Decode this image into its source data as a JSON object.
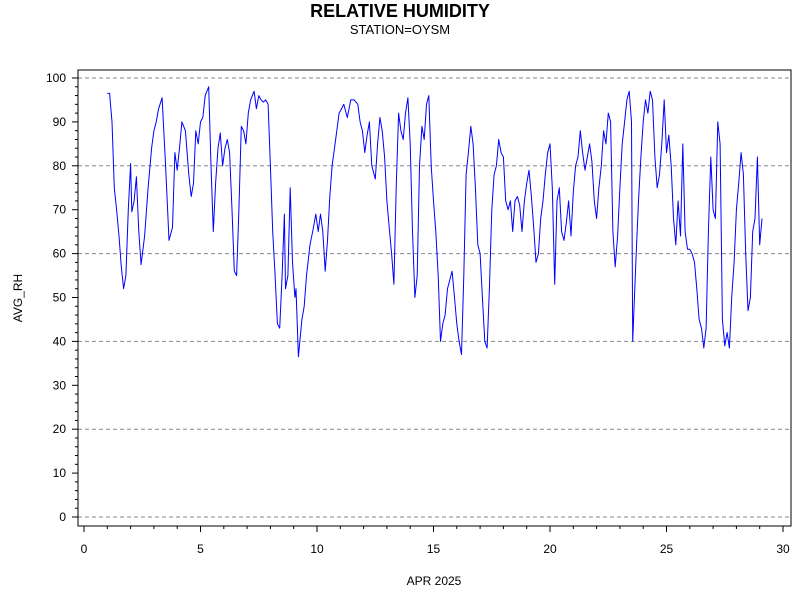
{
  "chart_data": {
    "type": "line",
    "title": "RELATIVE HUMIDITY",
    "subtitle": "STATION=OYSM",
    "xlabel": "APR 2025",
    "ylabel": "AVG_RH",
    "xlim": [
      0,
      30
    ],
    "ylim": [
      0,
      100
    ],
    "x_ticks": [
      0,
      5,
      10,
      15,
      20,
      25,
      30
    ],
    "y_ticks": [
      0,
      10,
      20,
      30,
      40,
      50,
      60,
      70,
      80,
      90,
      100
    ],
    "dashed_gridlines_y": [
      0,
      20,
      40,
      60,
      80,
      100
    ],
    "line_color": "#0000ff",
    "series": [
      {
        "values": [
          [
            1.0,
            96.5
          ],
          [
            1.1,
            96.5
          ],
          [
            1.2,
            90
          ],
          [
            1.3,
            75
          ],
          [
            1.4,
            70
          ],
          [
            1.5,
            64
          ],
          [
            1.6,
            57
          ],
          [
            1.7,
            52
          ],
          [
            1.8,
            55
          ],
          [
            1.9,
            70
          ],
          [
            2.0,
            80.5
          ],
          [
            2.05,
            69.5
          ],
          [
            2.15,
            72
          ],
          [
            2.25,
            77.5
          ],
          [
            2.35,
            65
          ],
          [
            2.45,
            57.5
          ],
          [
            2.6,
            64
          ],
          [
            2.75,
            75
          ],
          [
            2.9,
            84
          ],
          [
            3.0,
            88
          ],
          [
            3.1,
            90
          ],
          [
            3.2,
            93
          ],
          [
            3.35,
            95.5
          ],
          [
            3.5,
            80
          ],
          [
            3.65,
            63
          ],
          [
            3.8,
            66
          ],
          [
            3.9,
            83
          ],
          [
            4.0,
            79
          ],
          [
            4.1,
            84
          ],
          [
            4.2,
            90
          ],
          [
            4.35,
            88
          ],
          [
            4.5,
            78
          ],
          [
            4.6,
            73
          ],
          [
            4.7,
            76
          ],
          [
            4.8,
            88
          ],
          [
            4.9,
            85
          ],
          [
            5.0,
            90
          ],
          [
            5.1,
            91
          ],
          [
            5.2,
            96
          ],
          [
            5.35,
            98
          ],
          [
            5.45,
            80
          ],
          [
            5.55,
            65
          ],
          [
            5.65,
            76
          ],
          [
            5.75,
            84
          ],
          [
            5.85,
            87.5
          ],
          [
            5.95,
            80
          ],
          [
            6.05,
            84
          ],
          [
            6.15,
            86
          ],
          [
            6.25,
            83
          ],
          [
            6.35,
            70
          ],
          [
            6.45,
            56
          ],
          [
            6.55,
            55
          ],
          [
            6.65,
            70
          ],
          [
            6.75,
            89
          ],
          [
            6.85,
            88
          ],
          [
            6.95,
            85
          ],
          [
            7.05,
            92
          ],
          [
            7.15,
            95
          ],
          [
            7.3,
            97
          ],
          [
            7.4,
            93
          ],
          [
            7.5,
            96
          ],
          [
            7.6,
            95
          ],
          [
            7.7,
            94.5
          ],
          [
            7.8,
            95
          ],
          [
            7.9,
            94
          ],
          [
            8.0,
            80
          ],
          [
            8.1,
            65
          ],
          [
            8.2,
            55
          ],
          [
            8.3,
            44
          ],
          [
            8.4,
            43
          ],
          [
            8.5,
            55
          ],
          [
            8.6,
            69
          ],
          [
            8.65,
            52
          ],
          [
            8.75,
            55
          ],
          [
            8.85,
            75
          ],
          [
            8.95,
            58
          ],
          [
            9.05,
            50
          ],
          [
            9.1,
            52
          ],
          [
            9.2,
            36.5
          ],
          [
            9.35,
            45
          ],
          [
            9.45,
            48
          ],
          [
            9.55,
            55
          ],
          [
            9.7,
            62
          ],
          [
            9.85,
            66
          ],
          [
            9.95,
            69
          ],
          [
            10.05,
            65
          ],
          [
            10.15,
            69
          ],
          [
            10.25,
            65
          ],
          [
            10.35,
            56
          ],
          [
            10.45,
            63
          ],
          [
            10.55,
            73
          ],
          [
            10.65,
            80
          ],
          [
            10.75,
            84
          ],
          [
            10.85,
            88
          ],
          [
            10.95,
            92
          ],
          [
            11.05,
            93
          ],
          [
            11.15,
            94
          ],
          [
            11.3,
            91
          ],
          [
            11.45,
            95
          ],
          [
            11.6,
            95
          ],
          [
            11.75,
            94
          ],
          [
            11.85,
            90
          ],
          [
            11.95,
            88
          ],
          [
            12.05,
            83
          ],
          [
            12.15,
            87
          ],
          [
            12.25,
            90
          ],
          [
            12.35,
            80
          ],
          [
            12.5,
            77
          ],
          [
            12.6,
            85
          ],
          [
            12.7,
            91
          ],
          [
            12.8,
            88
          ],
          [
            12.9,
            82
          ],
          [
            13.0,
            72
          ],
          [
            13.1,
            66
          ],
          [
            13.2,
            60
          ],
          [
            13.3,
            53
          ],
          [
            13.4,
            75
          ],
          [
            13.5,
            92
          ],
          [
            13.6,
            88
          ],
          [
            13.7,
            86
          ],
          [
            13.8,
            92
          ],
          [
            13.9,
            95.5
          ],
          [
            14.0,
            85
          ],
          [
            14.1,
            65
          ],
          [
            14.2,
            50
          ],
          [
            14.3,
            55
          ],
          [
            14.4,
            80
          ],
          [
            14.5,
            89
          ],
          [
            14.6,
            86
          ],
          [
            14.7,
            94
          ],
          [
            14.8,
            96
          ],
          [
            14.9,
            80
          ],
          [
            15.0,
            72
          ],
          [
            15.1,
            65
          ],
          [
            15.2,
            55
          ],
          [
            15.3,
            40
          ],
          [
            15.4,
            44
          ],
          [
            15.5,
            46
          ],
          [
            15.6,
            52
          ],
          [
            15.7,
            54
          ],
          [
            15.8,
            56
          ],
          [
            15.9,
            50
          ],
          [
            16.0,
            44
          ],
          [
            16.1,
            40
          ],
          [
            16.2,
            37
          ],
          [
            16.3,
            55
          ],
          [
            16.4,
            78
          ],
          [
            16.5,
            83
          ],
          [
            16.6,
            89
          ],
          [
            16.7,
            85
          ],
          [
            16.8,
            75
          ],
          [
            16.9,
            62
          ],
          [
            17.0,
            60
          ],
          [
            17.1,
            50
          ],
          [
            17.2,
            40
          ],
          [
            17.3,
            38.5
          ],
          [
            17.4,
            52
          ],
          [
            17.5,
            70
          ],
          [
            17.6,
            78
          ],
          [
            17.7,
            80
          ],
          [
            17.8,
            86
          ],
          [
            17.9,
            83
          ],
          [
            18.0,
            82
          ],
          [
            18.1,
            72
          ],
          [
            18.2,
            70
          ],
          [
            18.3,
            72
          ],
          [
            18.4,
            65
          ],
          [
            18.5,
            72
          ],
          [
            18.6,
            73
          ],
          [
            18.7,
            71
          ],
          [
            18.8,
            65
          ],
          [
            18.9,
            72
          ],
          [
            19.0,
            76
          ],
          [
            19.1,
            79
          ],
          [
            19.2,
            73
          ],
          [
            19.3,
            66
          ],
          [
            19.4,
            58
          ],
          [
            19.5,
            60
          ],
          [
            19.6,
            68
          ],
          [
            19.7,
            72
          ],
          [
            19.8,
            78
          ],
          [
            19.9,
            83
          ],
          [
            20.0,
            85
          ],
          [
            20.1,
            75
          ],
          [
            20.2,
            53
          ],
          [
            20.3,
            72
          ],
          [
            20.4,
            75
          ],
          [
            20.5,
            65
          ],
          [
            20.6,
            63
          ],
          [
            20.7,
            67
          ],
          [
            20.8,
            72
          ],
          [
            20.9,
            64
          ],
          [
            21.0,
            74
          ],
          [
            21.1,
            80
          ],
          [
            21.2,
            82
          ],
          [
            21.3,
            88
          ],
          [
            21.4,
            83
          ],
          [
            21.5,
            79
          ],
          [
            21.6,
            82
          ],
          [
            21.7,
            85
          ],
          [
            21.8,
            81
          ],
          [
            21.9,
            72
          ],
          [
            22.0,
            68
          ],
          [
            22.1,
            75
          ],
          [
            22.2,
            80
          ],
          [
            22.3,
            88
          ],
          [
            22.4,
            85
          ],
          [
            22.5,
            92
          ],
          [
            22.6,
            90
          ],
          [
            22.7,
            65
          ],
          [
            22.8,
            57
          ],
          [
            22.9,
            64
          ],
          [
            23.0,
            75
          ],
          [
            23.1,
            85
          ],
          [
            23.2,
            90
          ],
          [
            23.3,
            95
          ],
          [
            23.4,
            97
          ],
          [
            23.5,
            90
          ],
          [
            23.55,
            40
          ],
          [
            23.7,
            60
          ],
          [
            23.8,
            72
          ],
          [
            23.9,
            82
          ],
          [
            24.0,
            90
          ],
          [
            24.1,
            95
          ],
          [
            24.2,
            92
          ],
          [
            24.3,
            97
          ],
          [
            24.4,
            95
          ],
          [
            24.5,
            82
          ],
          [
            24.6,
            75
          ],
          [
            24.7,
            78
          ],
          [
            24.8,
            85
          ],
          [
            24.9,
            95
          ],
          [
            25.0,
            83
          ],
          [
            25.1,
            87
          ],
          [
            25.2,
            80
          ],
          [
            25.3,
            68
          ],
          [
            25.4,
            62
          ],
          [
            25.5,
            72
          ],
          [
            25.6,
            64
          ],
          [
            25.7,
            85
          ],
          [
            25.8,
            65
          ],
          [
            25.9,
            61
          ],
          [
            26.0,
            61
          ],
          [
            26.1,
            60
          ],
          [
            26.2,
            58
          ],
          [
            26.3,
            52
          ],
          [
            26.4,
            45
          ],
          [
            26.5,
            43
          ],
          [
            26.6,
            38.5
          ],
          [
            26.7,
            43
          ],
          [
            26.8,
            65
          ],
          [
            26.9,
            82
          ],
          [
            27.0,
            70
          ],
          [
            27.1,
            68
          ],
          [
            27.2,
            90
          ],
          [
            27.3,
            85
          ],
          [
            27.4,
            45
          ],
          [
            27.5,
            39
          ],
          [
            27.6,
            42
          ],
          [
            27.7,
            38.5
          ],
          [
            27.8,
            50
          ],
          [
            27.9,
            58
          ],
          [
            28.0,
            70
          ],
          [
            28.1,
            76
          ],
          [
            28.2,
            83
          ],
          [
            28.3,
            78
          ],
          [
            28.4,
            60
          ],
          [
            28.5,
            47
          ],
          [
            28.6,
            50
          ],
          [
            28.7,
            65
          ],
          [
            28.8,
            68
          ],
          [
            28.9,
            82
          ],
          [
            29.0,
            62
          ],
          [
            29.1,
            68
          ]
        ]
      }
    ]
  }
}
